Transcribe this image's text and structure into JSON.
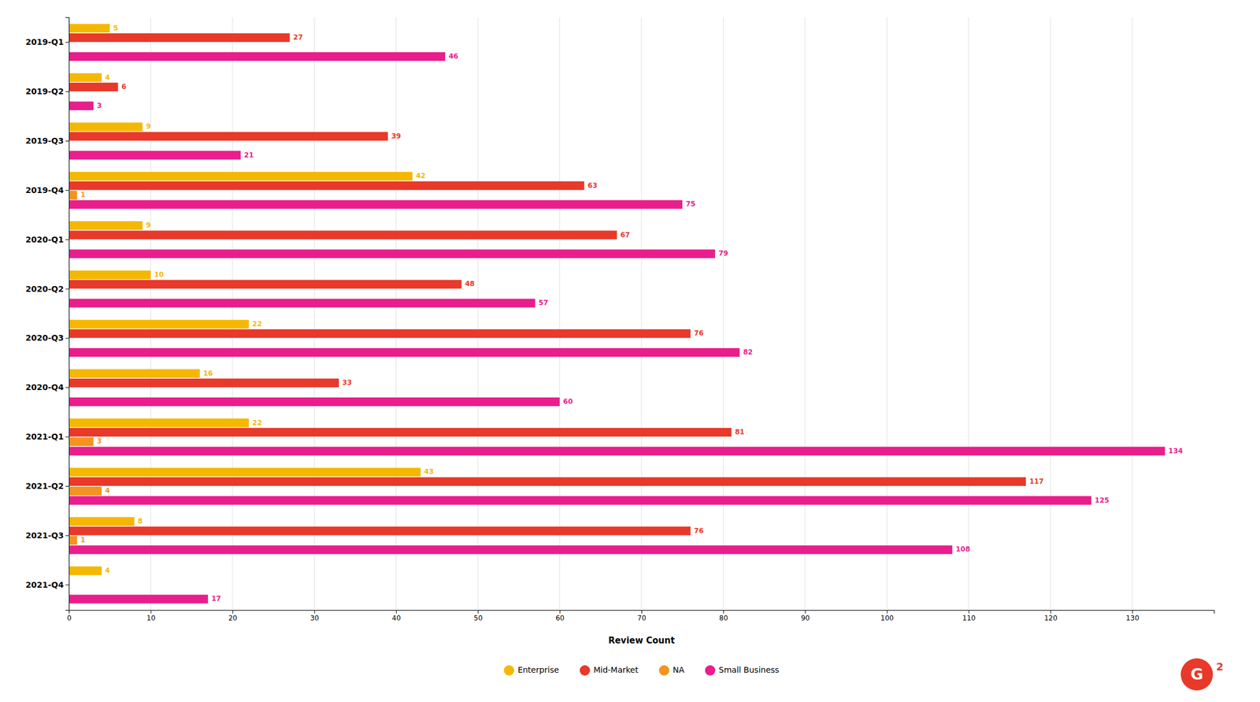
{
  "chart_data": {
    "type": "bar",
    "orientation": "horizontal",
    "x_label": "Review Count",
    "categories": [
      "2019-Q1",
      "2019-Q2",
      "2019-Q3",
      "2019-Q4",
      "2020-Q1",
      "2020-Q2",
      "2020-Q3",
      "2020-Q4",
      "2021-Q1",
      "2021-Q2",
      "2021-Q3",
      "2021-Q4"
    ],
    "series": [
      {
        "name": "Enterprise",
        "color": "#F5B800",
        "values": [
          5,
          4,
          9,
          42,
          9,
          10,
          22,
          16,
          22,
          43,
          8,
          4
        ]
      },
      {
        "name": "Mid-Market",
        "color": "#E8392A",
        "values": [
          27,
          6,
          39,
          63,
          67,
          48,
          76,
          33,
          81,
          117,
          76,
          0
        ]
      },
      {
        "name": "NA",
        "color": "#F5931F",
        "values": [
          0,
          0,
          0,
          1,
          0,
          0,
          0,
          0,
          3,
          4,
          1,
          0
        ]
      },
      {
        "name": "Small Business",
        "color": "#E91E8C",
        "values": [
          46,
          3,
          21,
          75,
          79,
          57,
          82,
          60,
          134,
          125,
          108,
          17
        ]
      }
    ],
    "xlim": [
      0,
      140
    ],
    "xticks": [
      0,
      10,
      20,
      30,
      40,
      50,
      60,
      70,
      80,
      90,
      100,
      110,
      120,
      130
    ],
    "grid": true,
    "legend": "bottom",
    "data_labels": true,
    "annotations": [
      {
        "text": "G"
      },
      {
        "text": "2"
      }
    ]
  }
}
